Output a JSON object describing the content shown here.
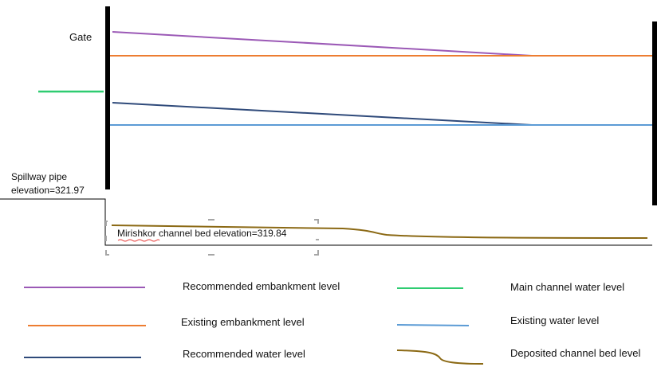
{
  "labels": {
    "gate": "Gate",
    "spillway_line1": "Spillway pipe",
    "spillway_line2": "elevation=321.97",
    "channel_bed": "Mirishkor channel bed elevation=319.84"
  },
  "legend": [
    {
      "label": "Recommended embankment level",
      "color": "#9b59b6",
      "style": "straight"
    },
    {
      "label": "Existing embankment level",
      "color": "#ed7d31",
      "style": "straight"
    },
    {
      "label": "Recommended water level",
      "color": "#2f4a7a",
      "style": "straight"
    },
    {
      "label": "Main channel water level",
      "color": "#2ecc71",
      "style": "straight"
    },
    {
      "label": "Existing water level",
      "color": "#5b9bd5",
      "style": "straight"
    },
    {
      "label": "Deposited channel bed level",
      "color": "#8b6914",
      "style": "curve"
    }
  ]
}
